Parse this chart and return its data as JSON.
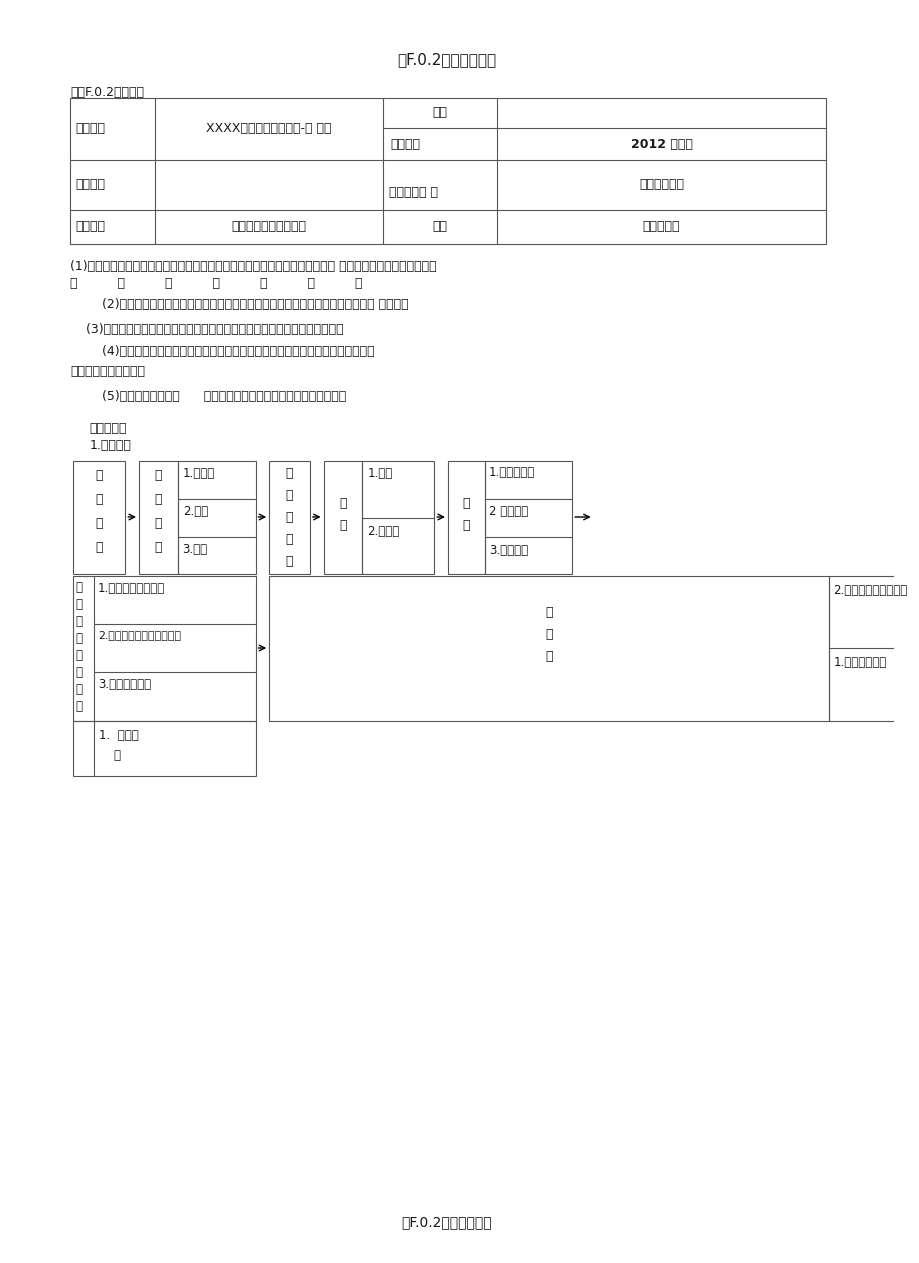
{
  "title": "表F.0.2技术交底记录",
  "subtitle": "施表F.0.2共页第页",
  "para1": "(1)煨弯时要防止出现凹扁过大或者弯曲半径不够倍数的现象，使用扳手弯管器 时，用力不要过猛，管子的焊",
  "para1b": "缝          应          该          在          侧          面          。",
  "para2": "        (2)暗配管路弯曲过多，敷设管路时，应该按设计图要求及现场情况，沿最近的管 路敷设。",
  "para3": "    (3)预埋盒、配管连接处歪斜，接线盒偏移严重，应根据具体情况进行修复。",
  "para4": "        (4)暗配管路堵塞，配管后应该及时扫管，发现管堵及时修复，配管后应及时用专",
  "para4b": "用塑料塞将管口堵严。",
  "para5": "        (5)管口不能有毛刺，      配管时断口要及时用锉刀将管口处理光滑。",
  "section1": "、施工工艺",
  "section1_1": "1.工艺流程",
  "footer": "表F.0.2技术交底记录",
  "bg_color": "#ffffff",
  "text_color": "#1a1a1a",
  "line_color": "#555555"
}
